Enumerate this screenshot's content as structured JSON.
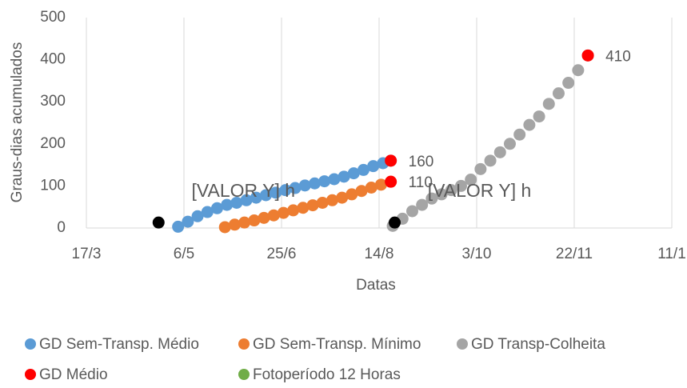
{
  "chart_data": {
    "type": "scatter",
    "xlabel": "Datas",
    "ylabel": "Graus-dias acumulados",
    "xlim": [
      76,
      376
    ],
    "xticks": [
      {
        "value": 76,
        "label": "17/3"
      },
      {
        "value": 126,
        "label": "6/5"
      },
      {
        "value": 176,
        "label": "25/6"
      },
      {
        "value": 226,
        "label": "14/8"
      },
      {
        "value": 276,
        "label": "3/10"
      },
      {
        "value": 326,
        "label": "22/11"
      },
      {
        "value": 376,
        "label": "11/1"
      }
    ],
    "ylim": [
      0,
      500
    ],
    "yticks": [
      0,
      100,
      200,
      300,
      400,
      500
    ],
    "grid": "x",
    "series": [
      {
        "name": "GD Sem-Transp. Médio",
        "color": "#5b9bd5",
        "x": [
          123,
          128,
          133,
          138,
          143,
          148,
          153,
          158,
          163,
          168,
          173,
          178,
          183,
          188,
          193,
          198,
          203,
          208,
          213,
          218,
          223,
          228,
          232
        ],
        "values": [
          3,
          15,
          28,
          38,
          47,
          55,
          60,
          66,
          72,
          78,
          84,
          90,
          95,
          101,
          106,
          111,
          116,
          122,
          130,
          138,
          147,
          154,
          160
        ]
      },
      {
        "name": "GD Sem-Transp. Mínimo",
        "color": "#ed7d31",
        "x": [
          147,
          152,
          157,
          162,
          167,
          172,
          177,
          182,
          187,
          192,
          197,
          202,
          207,
          212,
          217,
          222,
          227,
          232
        ],
        "values": [
          2,
          8,
          13,
          18,
          24,
          30,
          36,
          42,
          48,
          54,
          60,
          66,
          72,
          80,
          88,
          96,
          103,
          110
        ]
      },
      {
        "name": "GD Transp-Colheita",
        "color": "#a5a5a5",
        "x": [
          233,
          238,
          243,
          248,
          253,
          258,
          263,
          268,
          273,
          278,
          283,
          288,
          293,
          298,
          303,
          308,
          313,
          318,
          323,
          328,
          333
        ],
        "values": [
          5,
          22,
          40,
          55,
          70,
          80,
          90,
          100,
          115,
          140,
          160,
          180,
          200,
          222,
          245,
          265,
          295,
          320,
          345,
          375,
          410
        ]
      },
      {
        "name": "GD Médio",
        "color": "#ff0000",
        "show_values": true,
        "x": [
          232,
          232,
          333
        ],
        "values": [
          160,
          110,
          410
        ]
      },
      {
        "name": "Fotoperíodo 12 Horas",
        "color": "#70ad47",
        "marker_color": "#000000",
        "x": [
          113,
          234
        ],
        "values": [
          13,
          13
        ],
        "point_labels": [
          "[VALOR Y] h",
          "[VALOR Y] h"
        ]
      }
    ]
  }
}
